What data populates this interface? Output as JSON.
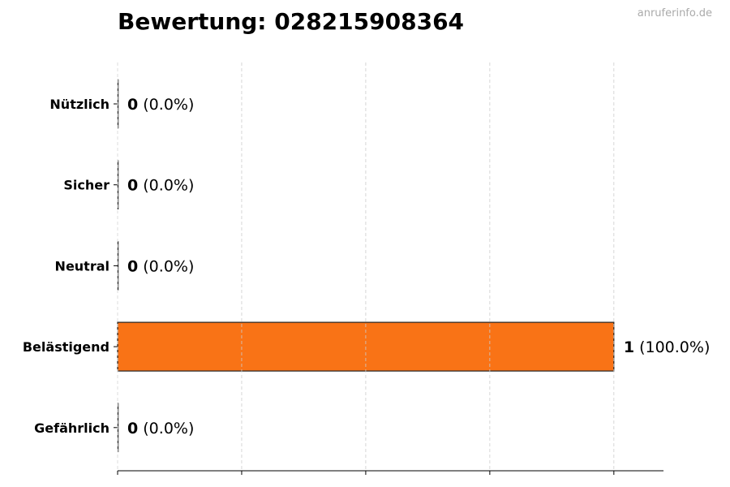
{
  "chart_data": {
    "type": "bar",
    "orientation": "horizontal",
    "title": "Bewertung: 028215908364",
    "watermark": "anruferinfo.de",
    "categories": [
      "Nützlich",
      "Sicher",
      "Neutral",
      "Belästigend",
      "Gefährlich"
    ],
    "values": [
      0,
      0,
      0,
      1,
      0
    ],
    "labels_count": [
      "0",
      "0",
      "0",
      "1",
      "0"
    ],
    "labels_percent": [
      "(0.0%)",
      "(0.0%)",
      "(0.0%)",
      "(100.0%)",
      "(0.0%)"
    ],
    "xlim": [
      0,
      1.1
    ],
    "xticks": [
      0,
      0.25,
      0.5,
      0.75,
      1
    ],
    "grid": "x dashed",
    "bar_color": "#f97316",
    "xlabel": "",
    "ylabel": ""
  }
}
